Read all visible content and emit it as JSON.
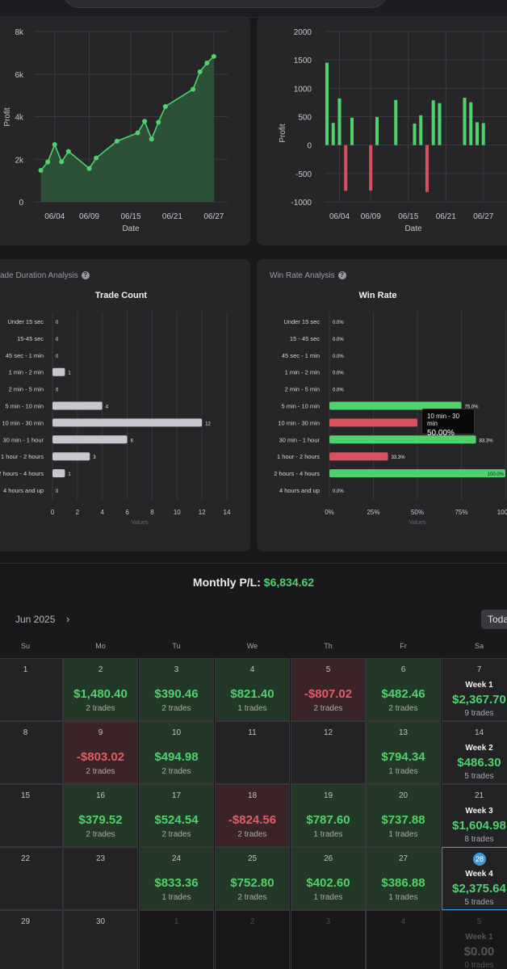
{
  "profit_chart": {
    "ylabel": "Profit",
    "xlabel": "Date",
    "y_ticks": [
      "0",
      "2k",
      "4k",
      "6k",
      "8k"
    ],
    "x_ticks": [
      "06/04",
      "06/09",
      "06/15",
      "06/21",
      "06/27"
    ],
    "line_color": "#4fd16b"
  },
  "daily_chart": {
    "ylabel": "Profit",
    "xlabel": "Date",
    "y_ticks": [
      "-1000",
      "-500",
      "0",
      "500",
      "1000",
      "1500",
      "2000"
    ],
    "x_ticks": [
      "06/04",
      "06/09",
      "06/15",
      "06/21",
      "06/27"
    ]
  },
  "duration_card": {
    "title": "ade Duration Analysis",
    "chart_title": "Trade Count",
    "x_axis_label": "Values",
    "x_ticks": [
      "0",
      "2",
      "4",
      "6",
      "8",
      "10",
      "12",
      "14"
    ]
  },
  "winrate_card": {
    "title": "Win Rate Analysis",
    "chart_title": "Win Rate",
    "x_axis_label": "Values",
    "x_ticks": [
      "0%",
      "25%",
      "50%",
      "75%",
      "100%"
    ],
    "tooltip": {
      "label": "10 min - 30 min",
      "value": "50.00%"
    }
  },
  "chart_data": [
    {
      "type": "area",
      "title": "",
      "xlabel": "Date",
      "ylabel": "Profit",
      "ylim": [
        0,
        8000
      ],
      "x": [
        "06/02",
        "06/03",
        "06/04",
        "06/05",
        "06/06",
        "06/09",
        "06/10",
        "06/13",
        "06/16",
        "06/17",
        "06/18",
        "06/19",
        "06/20",
        "06/24",
        "06/25",
        "06/26",
        "06/27"
      ],
      "values": [
        1480,
        1870,
        2690,
        1880,
        2370,
        1570,
        2060,
        2850,
        3240,
        3780,
        2950,
        3740,
        4480,
        5290,
        6110,
        6520,
        6830
      ]
    },
    {
      "type": "bar",
      "title": "",
      "xlabel": "Date",
      "ylabel": "Profit",
      "ylim": [
        -1000,
        2000
      ],
      "values": [
        1450,
        390,
        821,
        -807,
        482,
        -803,
        495,
        794,
        380,
        525,
        -825,
        788,
        738,
        833,
        753,
        403,
        387
      ],
      "day_index": [
        2,
        3,
        4,
        5,
        6,
        9,
        10,
        13,
        16,
        17,
        18,
        19,
        20,
        24,
        25,
        26,
        27
      ]
    },
    {
      "type": "bar",
      "title": "Trade Count",
      "orientation": "horizontal",
      "xlabel": "Values",
      "categories": [
        "Under 15 sec",
        "15-45 sec",
        "45 sec - 1 min",
        "1 min - 2 min",
        "2 min - 5 min",
        "5 min - 10 min",
        "10 min - 30 min",
        "30 min - 1 hour",
        "1 hour - 2 hours",
        "2 hours - 4 hours",
        "4 hours and up"
      ],
      "values": [
        0,
        0,
        0,
        1,
        0,
        4,
        12,
        6,
        3,
        1,
        0
      ],
      "value_labels": [
        "0",
        "0",
        "0",
        "1",
        "0",
        "4",
        "12",
        "6",
        "3",
        "1",
        "0"
      ],
      "xlim": [
        0,
        14
      ]
    },
    {
      "type": "bar",
      "title": "Win Rate",
      "orientation": "horizontal",
      "xlabel": "Values",
      "categories": [
        "Under 15 sec",
        "15 - 45 sec",
        "45 sec - 1 min",
        "1 min - 2 min",
        "2 min - 5 min",
        "5 min - 10 min",
        "10 min - 30 min",
        "30 min - 1 hour",
        "1 hour - 2 hours",
        "2 hours - 4 hours",
        "4 hours and up"
      ],
      "values": [
        0,
        0,
        0,
        0,
        0,
        75,
        50,
        83.3,
        33.3,
        100,
        0
      ],
      "value_labels": [
        "0.0%",
        "0.0%",
        "0.0%",
        "0.0%",
        "0.0%",
        "75.0%",
        "",
        "83.3%",
        "33.3%",
        "100.0%",
        "0.0%"
      ],
      "xlim": [
        0,
        100
      ]
    }
  ],
  "calendar": {
    "monthly_label": "Monthly P/L:",
    "monthly_value": "$6,834.62",
    "month": "Jun 2025",
    "next_icon": "chevron-right-icon",
    "today_label": "Today",
    "weekdays": [
      "Su",
      "Mo",
      "Tu",
      "We",
      "Th",
      "Fr",
      "Sa"
    ],
    "weeks": [
      [
        {
          "day": "1"
        },
        {
          "day": "2",
          "amount": "$1,480.40",
          "trades": "2 trades",
          "tone": "pos"
        },
        {
          "day": "3",
          "amount": "$390.46",
          "trades": "2 trades",
          "tone": "pos"
        },
        {
          "day": "4",
          "amount": "$821.40",
          "trades": "1 trades",
          "tone": "pos"
        },
        {
          "day": "5",
          "amount": "-$807.02",
          "trades": "2 trades",
          "tone": "neg"
        },
        {
          "day": "6",
          "amount": "$482.46",
          "trades": "2 trades",
          "tone": "pos"
        },
        {
          "day": "7",
          "week": "Week 1",
          "amount": "$2,367.70",
          "trades": "9 trades",
          "tone": "week"
        }
      ],
      [
        {
          "day": "8"
        },
        {
          "day": "9",
          "amount": "-$803.02",
          "trades": "2 trades",
          "tone": "neg"
        },
        {
          "day": "10",
          "amount": "$494.98",
          "trades": "2 trades",
          "tone": "pos"
        },
        {
          "day": "11"
        },
        {
          "day": "12"
        },
        {
          "day": "13",
          "amount": "$794.34",
          "trades": "1 trades",
          "tone": "pos"
        },
        {
          "day": "14",
          "week": "Week 2",
          "amount": "$486.30",
          "trades": "5 trades",
          "tone": "week"
        }
      ],
      [
        {
          "day": "15"
        },
        {
          "day": "16",
          "amount": "$379.52",
          "trades": "2 trades",
          "tone": "pos"
        },
        {
          "day": "17",
          "amount": "$524.54",
          "trades": "2 trades",
          "tone": "pos"
        },
        {
          "day": "18",
          "amount": "-$824.56",
          "trades": "2 trades",
          "tone": "neg"
        },
        {
          "day": "19",
          "amount": "$787.60",
          "trades": "1 trades",
          "tone": "pos"
        },
        {
          "day": "20",
          "amount": "$737.88",
          "trades": "1 trades",
          "tone": "pos"
        },
        {
          "day": "21",
          "week": "Week 3",
          "amount": "$1,604.98",
          "trades": "8 trades",
          "tone": "week"
        }
      ],
      [
        {
          "day": "22"
        },
        {
          "day": "23"
        },
        {
          "day": "24",
          "amount": "$833.36",
          "trades": "1 trades",
          "tone": "pos"
        },
        {
          "day": "25",
          "amount": "$752.80",
          "trades": "2 trades",
          "tone": "pos"
        },
        {
          "day": "26",
          "amount": "$402.60",
          "trades": "1 trades",
          "tone": "pos"
        },
        {
          "day": "27",
          "amount": "$386.88",
          "trades": "1 trades",
          "tone": "pos"
        },
        {
          "day": "28",
          "week": "Week 4",
          "amount": "$2,375.64",
          "trades": "5 trades",
          "tone": "week",
          "today": true
        }
      ],
      [
        {
          "day": "29"
        },
        {
          "day": "30"
        },
        {
          "day": "1",
          "tone": "off"
        },
        {
          "day": "2",
          "tone": "off"
        },
        {
          "day": "3",
          "tone": "off"
        },
        {
          "day": "4",
          "tone": "off"
        },
        {
          "day": "5",
          "week": "Week 1",
          "amount": "$0.00",
          "trades": "0 trades",
          "tone": "off"
        }
      ]
    ]
  }
}
